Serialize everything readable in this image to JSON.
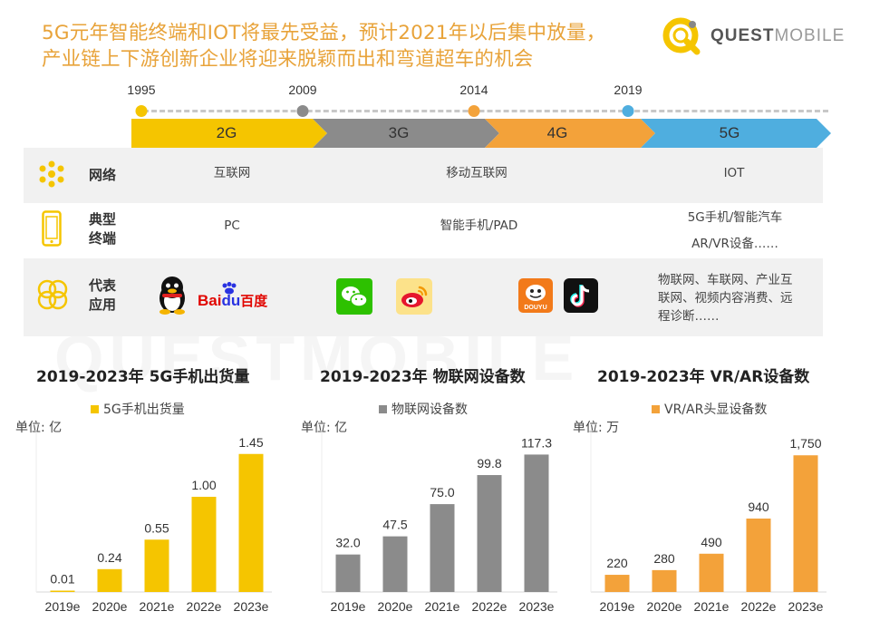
{
  "header": {
    "title_line1": "5G元年智能终端和IOT将最先受益，预计2021年以后集中放量，",
    "title_line2": "产业链上下游创新企业将迎来脱颖而出和弯道超车的机会",
    "logo_bold": "QUEST",
    "logo_light": "MOBILE"
  },
  "timeline": {
    "years": [
      "1995",
      "2009",
      "2014",
      "2019"
    ],
    "generations": [
      {
        "label": "2G",
        "color": "#F5C500"
      },
      {
        "label": "3G",
        "color": "#8B8B8B"
      },
      {
        "label": "4G",
        "color": "#F3A23A"
      },
      {
        "label": "5G",
        "color": "#4FAEDF"
      }
    ]
  },
  "rows": {
    "network": {
      "label": "网络",
      "cells": [
        "互联网",
        "移动互联网",
        "IOT"
      ]
    },
    "terminal": {
      "label_line1": "典型",
      "label_line2": "终端",
      "cells": [
        "PC",
        "智能手机/PAD"
      ],
      "fiveg_line1": "5G手机/智能汽车",
      "fiveg_line2": "AR/VR设备……"
    },
    "apps": {
      "label_line1": "代表",
      "label_line2": "应用",
      "baidu_a": "Bai",
      "baidu_b": "du",
      "baidu_c": "百度",
      "douyu": "DOUYU",
      "fiveg_line1": "物联网、车联网、产业互",
      "fiveg_line2": "联网、视频内容消费、远",
      "fiveg_line3": "程诊断……"
    }
  },
  "watermark": "QUESTMOBILE",
  "charts": [
    {
      "title": "2019-2023年 5G手机出货量",
      "legend": "5G手机出货量",
      "unit": "单位: 亿",
      "color": "#F5C500"
    },
    {
      "title": "2019-2023年 物联网设备数",
      "legend": "物联网设备数",
      "unit": "单位: 亿",
      "color": "#8B8B8B"
    },
    {
      "title": "2019-2023年 VR/AR设备数",
      "legend": "VR/AR头显设备数",
      "unit": "单位: 万",
      "color": "#F3A23A"
    }
  ],
  "chart_data": [
    {
      "type": "bar",
      "title": "2019-2023年 5G手机出货量",
      "categories": [
        "2019e",
        "2020e",
        "2021e",
        "2022e",
        "2023e"
      ],
      "series": [
        {
          "name": "5G手机出货量",
          "values": [
            0.01,
            0.24,
            0.55,
            1.0,
            1.45
          ]
        }
      ],
      "labels": [
        "0.01",
        "0.24",
        "0.55",
        "1.00",
        "1.45"
      ],
      "ylabel": "单位: 亿",
      "ylim": [
        0,
        1.6
      ],
      "legend": "top-left",
      "grid": false
    },
    {
      "type": "bar",
      "title": "2019-2023年 物联网设备数",
      "categories": [
        "2019e",
        "2020e",
        "2021e",
        "2022e",
        "2023e"
      ],
      "series": [
        {
          "name": "物联网设备数",
          "values": [
            32.0,
            47.5,
            75.0,
            99.8,
            117.3
          ]
        }
      ],
      "labels": [
        "32.0",
        "47.5",
        "75.0",
        "99.8",
        "117.3"
      ],
      "ylabel": "单位: 亿",
      "ylim": [
        0,
        130
      ],
      "legend": "top-left",
      "grid": false
    },
    {
      "type": "bar",
      "title": "2019-2023年 VR/AR设备数",
      "categories": [
        "2019e",
        "2020e",
        "2021e",
        "2022e",
        "2023e"
      ],
      "series": [
        {
          "name": "VR/AR头显设备数",
          "values": [
            220,
            280,
            490,
            940,
            1750
          ]
        }
      ],
      "labels": [
        "220",
        "280",
        "490",
        "940",
        "1,750"
      ],
      "ylabel": "单位: 万",
      "ylim": [
        0,
        1950
      ],
      "legend": "top-left",
      "grid": false
    }
  ]
}
